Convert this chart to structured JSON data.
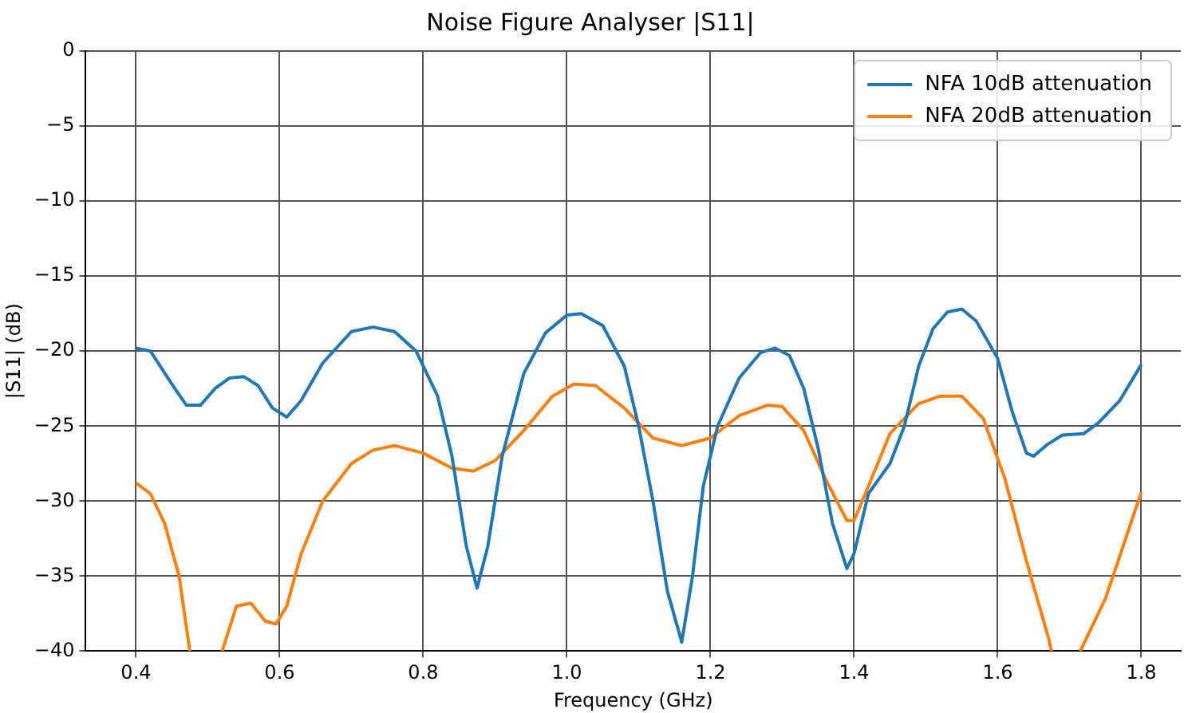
{
  "chart_data": {
    "type": "line",
    "title": "Noise Figure Analyser |S11|",
    "xlabel": "Frequency (GHz)",
    "ylabel": "|S11| (dB)",
    "xlim": [
      0.33,
      1.855
    ],
    "xticks": [
      0.4,
      0.6,
      0.8,
      {
        "value": 1,
        "label": "1.0"
      },
      1.2,
      1.4,
      1.6,
      1.8
    ],
    "ylim": [
      -40,
      0
    ],
    "yticks": [
      -40,
      -35,
      -30,
      -25,
      -20,
      -15,
      -10,
      -5,
      0
    ],
    "grid": true,
    "legend": "top right",
    "marker": "none",
    "line_style": "solid",
    "series": [
      {
        "name": "NFA 10dB attenuation",
        "color": "#1f77b4",
        "x": [
          0.4,
          0.42,
          0.45,
          0.47,
          0.49,
          0.51,
          0.53,
          0.55,
          0.57,
          0.59,
          0.61,
          0.63,
          0.66,
          0.7,
          0.73,
          0.76,
          0.79,
          0.82,
          0.84,
          0.86,
          0.875,
          0.89,
          0.91,
          0.94,
          0.97,
          1.0,
          1.02,
          1.05,
          1.08,
          1.1,
          1.12,
          1.14,
          1.16,
          1.175,
          1.19,
          1.21,
          1.24,
          1.27,
          1.29,
          1.31,
          1.33,
          1.35,
          1.37,
          1.39,
          1.4,
          1.42,
          1.45,
          1.47,
          1.49,
          1.51,
          1.53,
          1.55,
          1.57,
          1.6,
          1.62,
          1.64,
          1.65,
          1.67,
          1.69,
          1.72,
          1.74,
          1.77,
          1.8
        ],
        "values": [
          -19.8,
          -20.0,
          -22.2,
          -23.6,
          -23.6,
          -22.5,
          -21.8,
          -21.7,
          -22.3,
          -23.8,
          -24.4,
          -23.3,
          -20.8,
          -18.7,
          -18.4,
          -18.7,
          -20.0,
          -23,
          -27,
          -33,
          -35.8,
          -33,
          -27,
          -21.5,
          -18.8,
          -17.6,
          -17.5,
          -18.3,
          -21,
          -25,
          -30,
          -36,
          -39.4,
          -35,
          -29,
          -25,
          -21.8,
          -20.1,
          -19.8,
          -20.3,
          -22.5,
          -26.5,
          -31.5,
          -34.5,
          -33.5,
          -29.5,
          -27.5,
          -25,
          -21,
          -18.5,
          -17.4,
          -17.2,
          -18,
          -20.5,
          -24,
          -26.8,
          -27,
          -26.2,
          -25.6,
          -25.5,
          -24.8,
          -23.3,
          -20.9
        ]
      },
      {
        "name": "NFA 20dB attenuation",
        "color": "#ff7f0e",
        "x": [
          0.4,
          0.42,
          0.44,
          0.46,
          0.475,
          0.5,
          0.52,
          0.54,
          0.56,
          0.58,
          0.595,
          0.61,
          0.63,
          0.66,
          0.7,
          0.73,
          0.76,
          0.8,
          0.84,
          0.87,
          0.9,
          0.94,
          0.98,
          1.01,
          1.04,
          1.08,
          1.12,
          1.16,
          1.2,
          1.24,
          1.28,
          1.3,
          1.33,
          1.36,
          1.39,
          1.4,
          1.42,
          1.45,
          1.49,
          1.52,
          1.55,
          1.58,
          1.61,
          1.64,
          1.67,
          1.675,
          1.7,
          1.715,
          1.75,
          1.8
        ],
        "values": [
          -28.8,
          -29.5,
          -31.5,
          -35,
          -40,
          null,
          -40,
          -37,
          -36.8,
          -38,
          -38.2,
          -37,
          -33.5,
          -30,
          -27.5,
          -26.6,
          -26.3,
          -26.8,
          -27.8,
          -28.0,
          -27.3,
          -25.3,
          -23,
          -22.2,
          -22.3,
          -23.8,
          -25.8,
          -26.3,
          -25.8,
          -24.3,
          -23.6,
          -23.7,
          -25.3,
          -28.5,
          -31.3,
          -31.3,
          -29,
          -25.5,
          -23.5,
          -23,
          -23,
          -24.5,
          -28.5,
          -34,
          -39,
          -40,
          null,
          -40,
          -36.5,
          -29.4
        ]
      }
    ]
  }
}
